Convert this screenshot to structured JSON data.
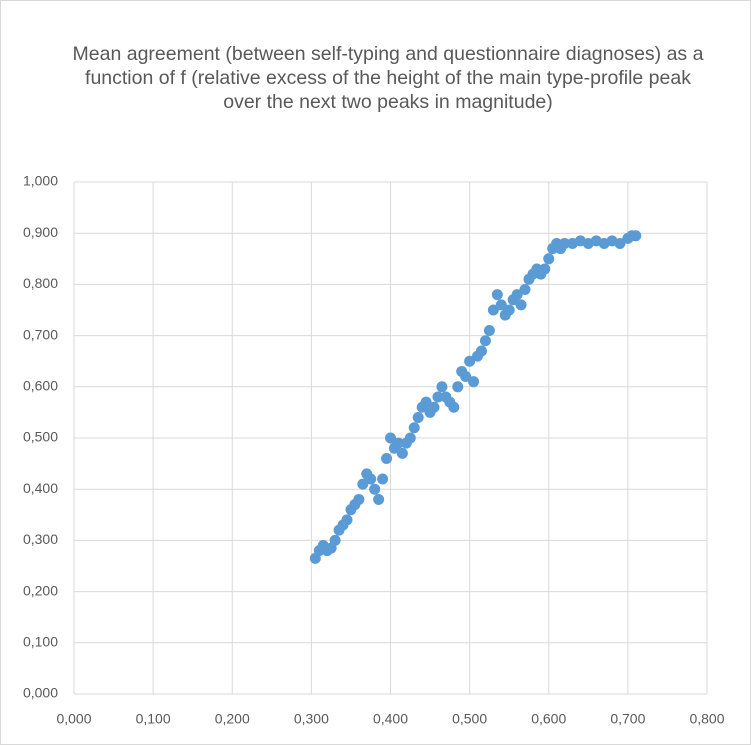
{
  "chart_data": {
    "type": "scatter",
    "title": "Mean agreement (between self-typing and questionnaire diagnoses) as a function of f (relative excess of the height of the main type-profile peak over the next two peaks in magnitude)",
    "color": "#5b9bd5",
    "grid": true,
    "x": [
      0.305,
      0.31,
      0.315,
      0.32,
      0.325,
      0.33,
      0.335,
      0.34,
      0.345,
      0.35,
      0.355,
      0.36,
      0.365,
      0.37,
      0.375,
      0.38,
      0.385,
      0.39,
      0.395,
      0.4,
      0.405,
      0.41,
      0.415,
      0.42,
      0.425,
      0.43,
      0.435,
      0.44,
      0.445,
      0.45,
      0.455,
      0.46,
      0.465,
      0.47,
      0.475,
      0.48,
      0.485,
      0.49,
      0.495,
      0.5,
      0.505,
      0.51,
      0.515,
      0.52,
      0.525,
      0.53,
      0.535,
      0.54,
      0.545,
      0.55,
      0.555,
      0.56,
      0.565,
      0.57,
      0.575,
      0.58,
      0.585,
      0.59,
      0.595,
      0.6,
      0.605,
      0.61,
      0.615,
      0.62,
      0.63,
      0.64,
      0.65,
      0.66,
      0.67,
      0.68,
      0.69,
      0.7,
      0.705,
      0.71
    ],
    "values": [
      0.265,
      0.28,
      0.29,
      0.28,
      0.285,
      0.3,
      0.32,
      0.33,
      0.34,
      0.36,
      0.37,
      0.38,
      0.41,
      0.43,
      0.42,
      0.4,
      0.38,
      0.42,
      0.46,
      0.5,
      0.48,
      0.49,
      0.47,
      0.49,
      0.5,
      0.52,
      0.54,
      0.56,
      0.57,
      0.55,
      0.56,
      0.58,
      0.6,
      0.58,
      0.57,
      0.56,
      0.6,
      0.63,
      0.62,
      0.65,
      0.61,
      0.66,
      0.67,
      0.69,
      0.71,
      0.75,
      0.78,
      0.76,
      0.74,
      0.75,
      0.77,
      0.78,
      0.76,
      0.79,
      0.81,
      0.82,
      0.83,
      0.82,
      0.83,
      0.85,
      0.87,
      0.88,
      0.87,
      0.88,
      0.88,
      0.885,
      0.88,
      0.885,
      0.88,
      0.885,
      0.88,
      0.89,
      0.895,
      0.895
    ],
    "xlim": [
      0,
      0.8
    ],
    "xticks": [
      {
        "value": 0,
        "label": "0,000"
      },
      {
        "value": 0.1,
        "label": "0,100"
      },
      {
        "value": 0.2,
        "label": "0,200"
      },
      {
        "value": 0.3,
        "label": "0,300"
      },
      {
        "value": 0.4,
        "label": "0,400"
      },
      {
        "value": 0.5,
        "label": "0,500"
      },
      {
        "value": 0.6,
        "label": "0,600"
      },
      {
        "value": 0.7,
        "label": "0,700"
      },
      {
        "value": 0.8,
        "label": "0,800"
      }
    ],
    "ylim": [
      0,
      1
    ],
    "yticks": [
      {
        "value": 0,
        "label": "0,000"
      },
      {
        "value": 0.1,
        "label": "0,100"
      },
      {
        "value": 0.2,
        "label": "0,200"
      },
      {
        "value": 0.3,
        "label": "0,300"
      },
      {
        "value": 0.4,
        "label": "0,400"
      },
      {
        "value": 0.5,
        "label": "0,500"
      },
      {
        "value": 0.6,
        "label": "0,600"
      },
      {
        "value": 0.7,
        "label": "0,700"
      },
      {
        "value": 0.8,
        "label": "0,800"
      },
      {
        "value": 0.9,
        "label": "0,900"
      },
      {
        "value": 1,
        "label": "1,000"
      }
    ]
  }
}
